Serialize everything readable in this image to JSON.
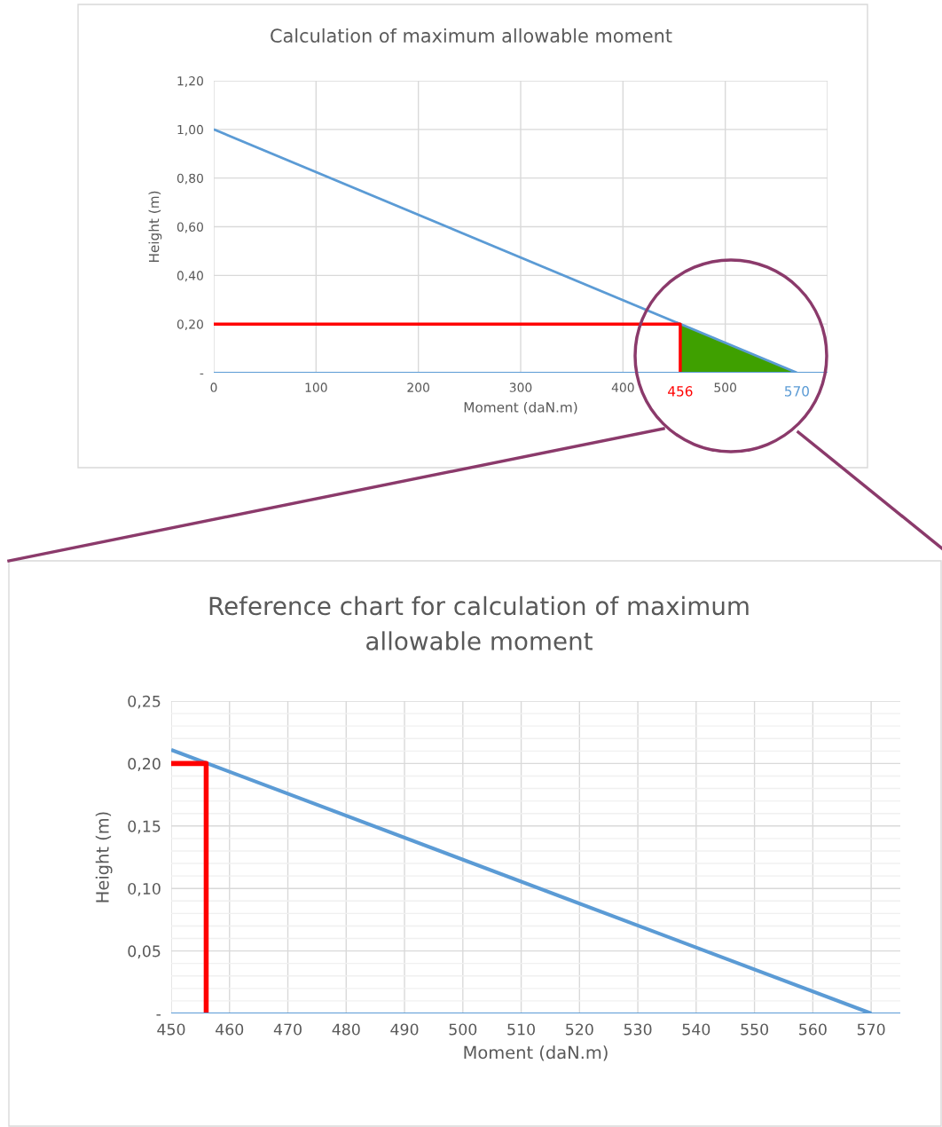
{
  "chart_data": [
    {
      "type": "line",
      "title": "Calculation of maximum allowable moment",
      "xlabel": "Moment (daN.m)",
      "ylabel": "Height (m)",
      "series": [
        {
          "color": "#5b9bd5",
          "x": [
            0,
            570
          ],
          "values": [
            1.0,
            0
          ]
        },
        {
          "color": "#ff0000",
          "x": [
            0,
            456,
            456
          ],
          "values": [
            0.2,
            0.2,
            0
          ]
        },
        {
          "type": "area",
          "color": "#3fa000",
          "x": [
            456,
            570
          ],
          "values": [
            0.2,
            0
          ]
        },
        {
          "color": "#5b9bd5",
          "x": [
            0,
            600
          ],
          "values": [
            0,
            0
          ]
        }
      ],
      "xlim": [
        0,
        600
      ],
      "xticks": [
        0,
        100,
        200,
        300,
        400,
        500,
        {
          "value": 600,
          "label": null
        }
      ],
      "ylim": [
        0,
        1.2
      ],
      "yticks": [
        {
          "value": 0,
          "label": "-"
        },
        {
          "value": 0.2,
          "label": "0,20"
        },
        {
          "value": 0.4,
          "label": "0,40"
        },
        {
          "value": 0.6,
          "label": "0,60"
        },
        {
          "value": 0.8,
          "label": "0,80"
        },
        {
          "value": 1.0,
          "label": "1,00"
        },
        {
          "value": 1.2,
          "label": "1,20"
        }
      ],
      "annotations": [
        {
          "text": "456",
          "x": 456,
          "y": 0
        },
        {
          "text": "570",
          "x": 570,
          "y": 0
        }
      ],
      "grid": true
    },
    {
      "type": "line",
      "title": "Reference chart for calculation of maximum\nallowable moment",
      "xlabel": "Moment (daN.m)",
      "ylabel": "Height (m)",
      "series": [
        {
          "color": "#5b9bd5",
          "x": [
            450,
            570
          ],
          "values": [
            0.211,
            0
          ]
        },
        {
          "color": "#ff0000",
          "x": [
            450,
            456,
            456
          ],
          "values": [
            0.2,
            0.2,
            0
          ]
        },
        {
          "color": "#5b9bd5",
          "x": [
            450,
            575
          ],
          "values": [
            0,
            0
          ]
        }
      ],
      "xlim": [
        450,
        575
      ],
      "xticks": [
        450,
        460,
        470,
        480,
        490,
        500,
        510,
        520,
        530,
        540,
        550,
        560,
        570
      ],
      "ylim": [
        0,
        0.25
      ],
      "yticks": [
        {
          "value": 0,
          "label": "-"
        },
        {
          "value": 0.01,
          "label": null
        },
        {
          "value": 0.02,
          "label": null
        },
        {
          "value": 0.03,
          "label": null
        },
        {
          "value": 0.04,
          "label": null
        },
        {
          "value": 0.05,
          "label": "0,05"
        },
        {
          "value": 0.06,
          "label": null
        },
        {
          "value": 0.07,
          "label": null
        },
        {
          "value": 0.08,
          "label": null
        },
        {
          "value": 0.09,
          "label": null
        },
        {
          "value": 0.1,
          "label": "0,10"
        },
        {
          "value": 0.11,
          "label": null
        },
        {
          "value": 0.12,
          "label": null
        },
        {
          "value": 0.13,
          "label": null
        },
        {
          "value": 0.14,
          "label": null
        },
        {
          "value": 0.15,
          "label": "0,15"
        },
        {
          "value": 0.16,
          "label": null
        },
        {
          "value": 0.17,
          "label": null
        },
        {
          "value": 0.18,
          "label": null
        },
        {
          "value": 0.19,
          "label": null
        },
        {
          "value": 0.2,
          "label": "0,20"
        },
        {
          "value": 0.21,
          "label": null
        },
        {
          "value": 0.22,
          "label": null
        },
        {
          "value": 0.23,
          "label": null
        },
        {
          "value": 0.24,
          "label": null
        },
        {
          "value": 0.25,
          "label": "0,25"
        }
      ],
      "grid": true
    }
  ]
}
